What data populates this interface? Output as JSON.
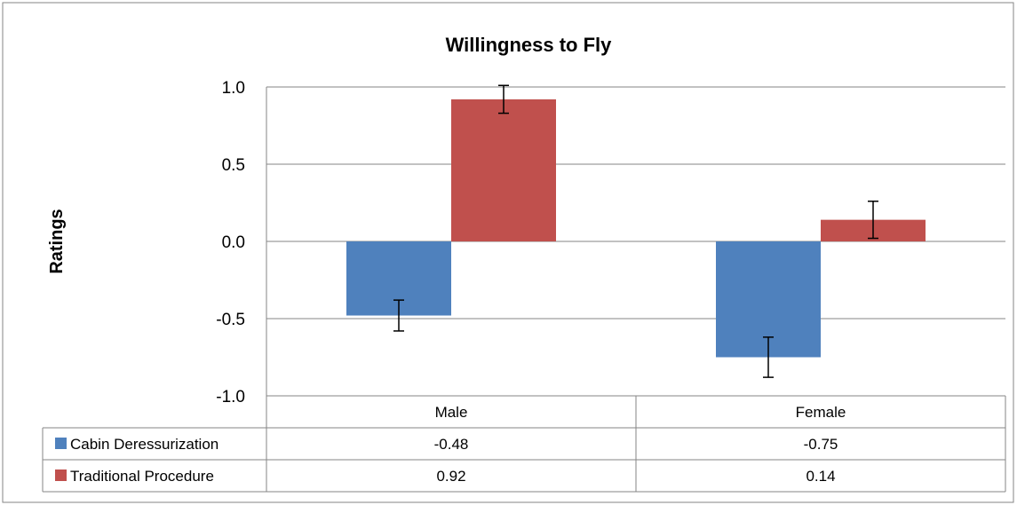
{
  "chart_data": {
    "type": "bar",
    "title": "Willingness to Fly",
    "ylabel": "Ratings",
    "xlabel": "",
    "categories": [
      "Male",
      "Female"
    ],
    "ylim": [
      -1.0,
      1.0
    ],
    "yticks": [
      "1.0",
      "0.5",
      "0.0",
      "-0.5",
      "-1.0"
    ],
    "ytick_values": [
      1.0,
      0.5,
      0.0,
      -0.5,
      -1.0
    ],
    "grid": true,
    "legend": "data-table-below",
    "series": [
      {
        "name": "Cabin Deressurization",
        "values": [
          -0.48,
          -0.75
        ],
        "value_labels": [
          "-0.48",
          "-0.75"
        ],
        "error": [
          0.1,
          0.13
        ],
        "color": "#4F81BD"
      },
      {
        "name": "Traditional Procedure",
        "values": [
          0.92,
          0.14
        ],
        "value_labels": [
          "0.92",
          "0.14"
        ],
        "error": [
          0.09,
          0.12
        ],
        "color": "#C0504D"
      }
    ]
  }
}
